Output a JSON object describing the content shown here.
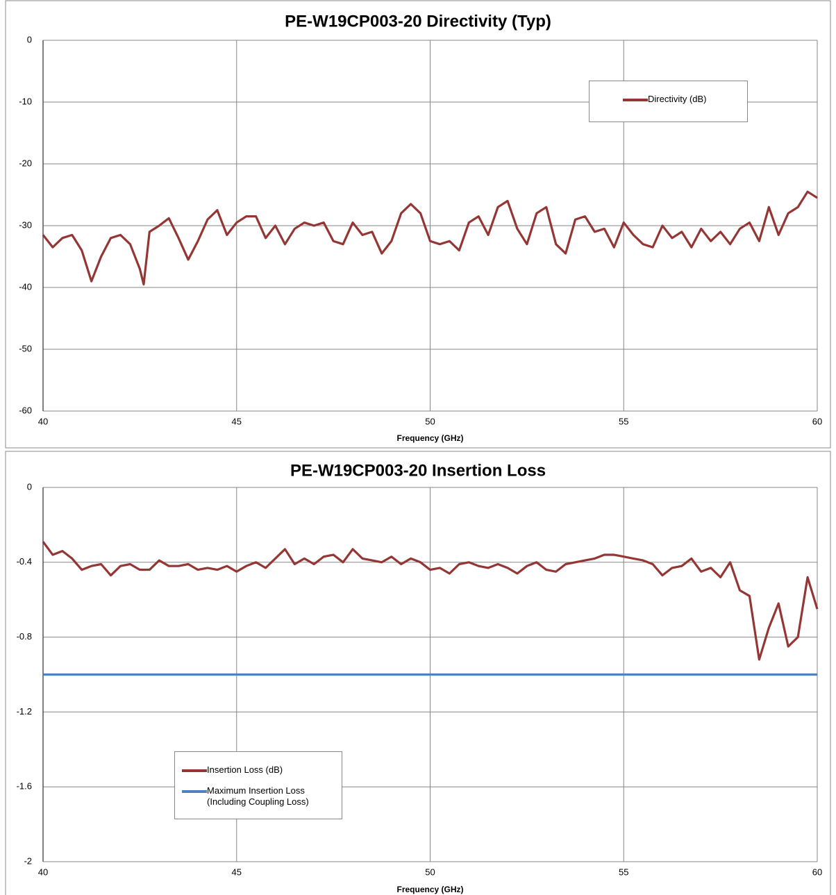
{
  "chart_data": [
    {
      "type": "line",
      "title": "PE-W19CP003-20 Directivity (Typ)",
      "x_label": "Frequency (GHz)",
      "x": [
        40,
        40.25,
        40.5,
        40.75,
        41,
        41.25,
        41.5,
        41.75,
        42,
        42.25,
        42.5,
        42.6,
        42.75,
        43,
        43.25,
        43.5,
        43.75,
        44,
        44.25,
        44.5,
        44.75,
        45,
        45.25,
        45.5,
        45.75,
        46,
        46.25,
        46.5,
        46.75,
        47,
        47.25,
        47.5,
        47.75,
        48,
        48.25,
        48.5,
        48.75,
        49,
        49.25,
        49.5,
        49.75,
        50,
        50.25,
        50.5,
        50.75,
        51,
        51.25,
        51.5,
        51.75,
        52,
        52.25,
        52.5,
        52.75,
        53,
        53.25,
        53.5,
        53.75,
        54,
        54.25,
        54.5,
        54.75,
        55,
        55.25,
        55.5,
        55.75,
        56,
        56.25,
        56.5,
        56.75,
        57,
        57.25,
        57.5,
        57.75,
        58,
        58.25,
        58.5,
        58.75,
        59,
        59.25,
        59.5,
        59.75,
        60
      ],
      "series": [
        {
          "name": "Directivity (dB)",
          "color": "#943634",
          "values": [
            -31.5,
            -33.5,
            -32,
            -31.5,
            -34,
            -39,
            -35,
            -32,
            -31.5,
            -33,
            -37,
            -39.5,
            -31,
            -30,
            -28.8,
            -32,
            -35.5,
            -32.5,
            -29,
            -27.5,
            -31.5,
            -29.5,
            -28.5,
            -28.5,
            -32,
            -30,
            -33,
            -30.5,
            -29.5,
            -30,
            -29.5,
            -32.5,
            -33,
            -29.5,
            -31.5,
            -31,
            -34.5,
            -32.5,
            -28,
            -26.5,
            -28,
            -32.5,
            -33,
            -32.5,
            -34,
            -29.5,
            -28.5,
            -31.5,
            -27,
            -26,
            -30.5,
            -33,
            -28,
            -27,
            -33,
            -34.5,
            -29,
            -28.5,
            -31,
            -30.5,
            -33.5,
            -29.5,
            -31.5,
            -33,
            -33.5,
            -30,
            -32,
            -31,
            -33.5,
            -30.5,
            -32.5,
            -31,
            -33,
            -30.5,
            -29.5,
            -32.5,
            -27,
            -31.5,
            -28,
            -27,
            -24.5,
            -25.5
          ]
        }
      ],
      "xlim": [
        40,
        60
      ],
      "xticks": [
        40,
        45,
        50,
        55,
        60
      ],
      "ylim": [
        -60,
        0
      ],
      "yticks": [
        0,
        -10,
        -20,
        -30,
        -40,
        -50,
        -60
      ],
      "grid": true,
      "legend": "upper right"
    },
    {
      "type": "line",
      "title": "PE-W19CP003-20 Insertion Loss",
      "x_label": "Frequency (GHz)",
      "x": [
        40,
        40.25,
        40.5,
        40.75,
        41,
        41.25,
        41.5,
        41.75,
        42,
        42.25,
        42.5,
        42.75,
        43,
        43.25,
        43.5,
        43.75,
        44,
        44.25,
        44.5,
        44.75,
        45,
        45.25,
        45.5,
        45.75,
        46,
        46.25,
        46.5,
        46.75,
        47,
        47.25,
        47.5,
        47.75,
        48,
        48.25,
        48.5,
        48.75,
        49,
        49.25,
        49.5,
        49.75,
        50,
        50.25,
        50.5,
        50.75,
        51,
        51.25,
        51.5,
        51.75,
        52,
        52.25,
        52.5,
        52.75,
        53,
        53.25,
        53.5,
        53.75,
        54,
        54.25,
        54.5,
        54.75,
        55,
        55.25,
        55.5,
        55.75,
        56,
        56.25,
        56.5,
        56.75,
        57,
        57.25,
        57.5,
        57.75,
        58,
        58.25,
        58.5,
        58.75,
        59,
        59.25,
        59.5,
        59.75,
        60
      ],
      "series": [
        {
          "name": "Insertion Loss (dB)",
          "color": "#943634",
          "values": [
            -0.29,
            -0.36,
            -0.34,
            -0.38,
            -0.44,
            -0.42,
            -0.41,
            -0.47,
            -0.42,
            -0.41,
            -0.44,
            -0.44,
            -0.39,
            -0.42,
            -0.42,
            -0.41,
            -0.44,
            -0.43,
            -0.44,
            -0.42,
            -0.45,
            -0.42,
            -0.4,
            -0.43,
            -0.38,
            -0.33,
            -0.41,
            -0.38,
            -0.41,
            -0.37,
            -0.36,
            -0.4,
            -0.33,
            -0.38,
            -0.39,
            -0.4,
            -0.37,
            -0.41,
            -0.38,
            -0.4,
            -0.44,
            -0.43,
            -0.46,
            -0.41,
            -0.4,
            -0.42,
            -0.43,
            -0.41,
            -0.43,
            -0.46,
            -0.42,
            -0.4,
            -0.44,
            -0.45,
            -0.41,
            -0.4,
            -0.39,
            -0.38,
            -0.36,
            -0.36,
            -0.37,
            -0.38,
            -0.39,
            -0.41,
            -0.47,
            -0.43,
            -0.42,
            -0.38,
            -0.45,
            -0.43,
            -0.48,
            -0.4,
            -0.55,
            -0.58,
            -0.92,
            -0.75,
            -0.62,
            -0.85,
            -0.8,
            -0.48,
            -0.65
          ]
        },
        {
          "name": "Maximum Insertion Loss\n(Including Coupling Loss)",
          "color": "#4f81bd",
          "x": [
            40,
            60
          ],
          "values": [
            -1,
            -1
          ]
        }
      ],
      "xlim": [
        40,
        60
      ],
      "xticks": [
        40,
        45,
        50,
        55,
        60
      ],
      "ylim": [
        -2,
        0
      ],
      "yticks": [
        0,
        -0.4,
        -0.8,
        -1.2,
        -1.6,
        -2
      ],
      "grid": true,
      "legend": "lower left"
    }
  ]
}
